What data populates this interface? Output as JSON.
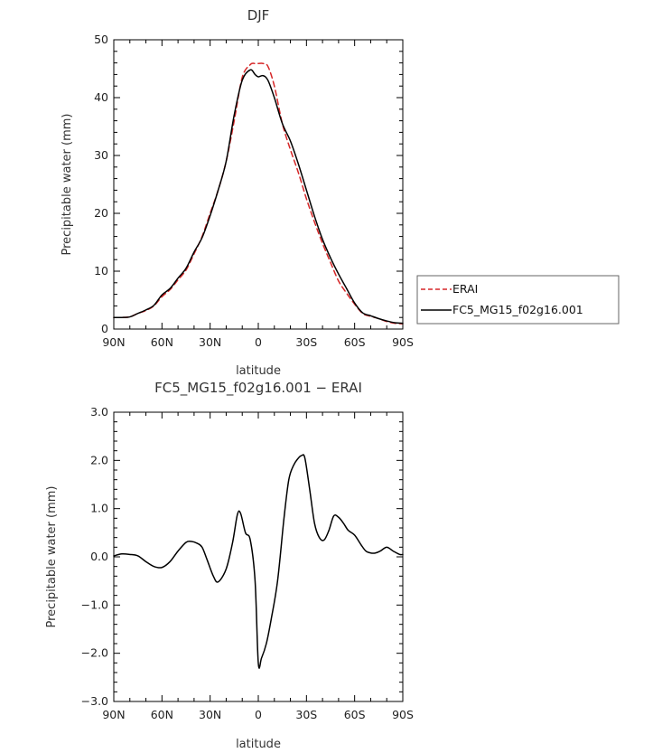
{
  "chart_data": [
    {
      "type": "line",
      "title": "DJF",
      "xlabel": "latitude",
      "ylabel": "Precipitable water (mm)",
      "xlim": [
        90,
        -90
      ],
      "ylim": [
        0,
        50
      ],
      "x_ticks": [
        90,
        60,
        30,
        0,
        -30,
        -60,
        -90
      ],
      "x_tick_labels": [
        "90N",
        "60N",
        "30N",
        "0",
        "30S",
        "60S",
        "90S"
      ],
      "y_ticks": [
        0,
        10,
        20,
        30,
        40,
        50
      ],
      "y_tick_labels": [
        "0",
        "10",
        "20",
        "30",
        "40",
        "50"
      ],
      "legend_position": "right",
      "series": [
        {
          "name": "ERAI",
          "color": "#d62728",
          "dash": "dashed",
          "x": [
            90,
            85,
            80,
            75,
            70,
            65,
            60,
            55,
            50,
            45,
            40,
            35,
            30,
            25,
            20,
            15,
            10,
            5,
            2,
            0,
            -3,
            -6,
            -10,
            -15,
            -20,
            -25,
            -30,
            -35,
            -40,
            -45,
            -50,
            -55,
            -60,
            -65,
            -70,
            -75,
            -80,
            -85,
            -90
          ],
          "y": [
            2.0,
            2.0,
            2.1,
            2.7,
            3.2,
            4.0,
            5.6,
            6.8,
            8.5,
            10.2,
            13.0,
            16.0,
            20.0,
            24.0,
            29.0,
            36.0,
            43.5,
            45.7,
            45.9,
            45.9,
            45.9,
            45.4,
            42.0,
            35.5,
            31.0,
            27.0,
            22.5,
            18.5,
            14.8,
            11.5,
            8.3,
            6.2,
            4.3,
            2.7,
            2.2,
            1.8,
            1.3,
            1.0,
            0.9
          ]
        },
        {
          "name": "FC5_MG15_f02g16.001",
          "color": "#000000",
          "dash": "solid",
          "x": [
            90,
            85,
            80,
            75,
            70,
            65,
            60,
            55,
            50,
            45,
            40,
            35,
            30,
            25,
            20,
            15,
            10,
            5,
            2,
            0,
            -3,
            -6,
            -10,
            -15,
            -20,
            -25,
            -30,
            -35,
            -40,
            -45,
            -50,
            -55,
            -60,
            -65,
            -70,
            -75,
            -80,
            -85,
            -90
          ],
          "y": [
            2.0,
            2.0,
            2.1,
            2.7,
            3.3,
            4.1,
            5.9,
            7.0,
            8.8,
            10.5,
            13.3,
            15.8,
            19.6,
            24.0,
            29.0,
            37.0,
            43.0,
            44.8,
            44.0,
            43.6,
            43.8,
            43.0,
            40.0,
            35.5,
            32.5,
            28.5,
            24.0,
            19.5,
            15.5,
            12.3,
            9.5,
            7.0,
            4.5,
            2.8,
            2.3,
            1.8,
            1.4,
            1.1,
            1.0
          ]
        }
      ]
    },
    {
      "type": "line",
      "title": "FC5_MG15_f02g16.001 − ERAI",
      "xlabel": "latitude",
      "ylabel": "Precipitable water (mm)",
      "xlim": [
        90,
        -90
      ],
      "ylim": [
        -3,
        3
      ],
      "x_ticks": [
        90,
        60,
        30,
        0,
        -30,
        -60,
        -90
      ],
      "x_tick_labels": [
        "90N",
        "60N",
        "30N",
        "0",
        "30S",
        "60S",
        "90S"
      ],
      "y_ticks": [
        -3,
        -2,
        -1,
        0,
        1,
        2,
        3
      ],
      "y_tick_labels": [
        "−3.0",
        "−2.0",
        "−1.0",
        "0.0",
        "1.0",
        "2.0",
        "3.0"
      ],
      "series": [
        {
          "color": "#000000",
          "dash": "solid",
          "x": [
            90,
            85,
            80,
            75,
            70,
            65,
            60,
            55,
            50,
            45,
            42,
            38,
            35,
            32,
            28,
            25,
            20,
            16,
            13,
            11,
            8,
            5,
            2,
            0,
            -2,
            -5,
            -8,
            -12,
            -16,
            -19,
            -22,
            -25,
            -27,
            -29,
            -32,
            -35,
            -38,
            -41,
            -44,
            -47,
            -50,
            -53,
            -56,
            -60,
            -64,
            -67,
            -70,
            -73,
            -76,
            -80,
            -84,
            -88,
            -90
          ],
          "y": [
            0.02,
            0.06,
            0.05,
            0.02,
            -0.1,
            -0.2,
            -0.22,
            -0.1,
            0.12,
            0.3,
            0.32,
            0.28,
            0.2,
            -0.05,
            -0.4,
            -0.52,
            -0.25,
            0.3,
            0.88,
            0.9,
            0.5,
            0.35,
            -0.5,
            -2.2,
            -2.1,
            -1.8,
            -1.3,
            -0.5,
            0.8,
            1.6,
            1.9,
            2.05,
            2.1,
            2.05,
            1.4,
            0.7,
            0.4,
            0.35,
            0.55,
            0.85,
            0.82,
            0.7,
            0.55,
            0.45,
            0.25,
            0.12,
            0.08,
            0.08,
            0.12,
            0.2,
            0.12,
            0.05,
            0.05
          ]
        }
      ]
    }
  ]
}
